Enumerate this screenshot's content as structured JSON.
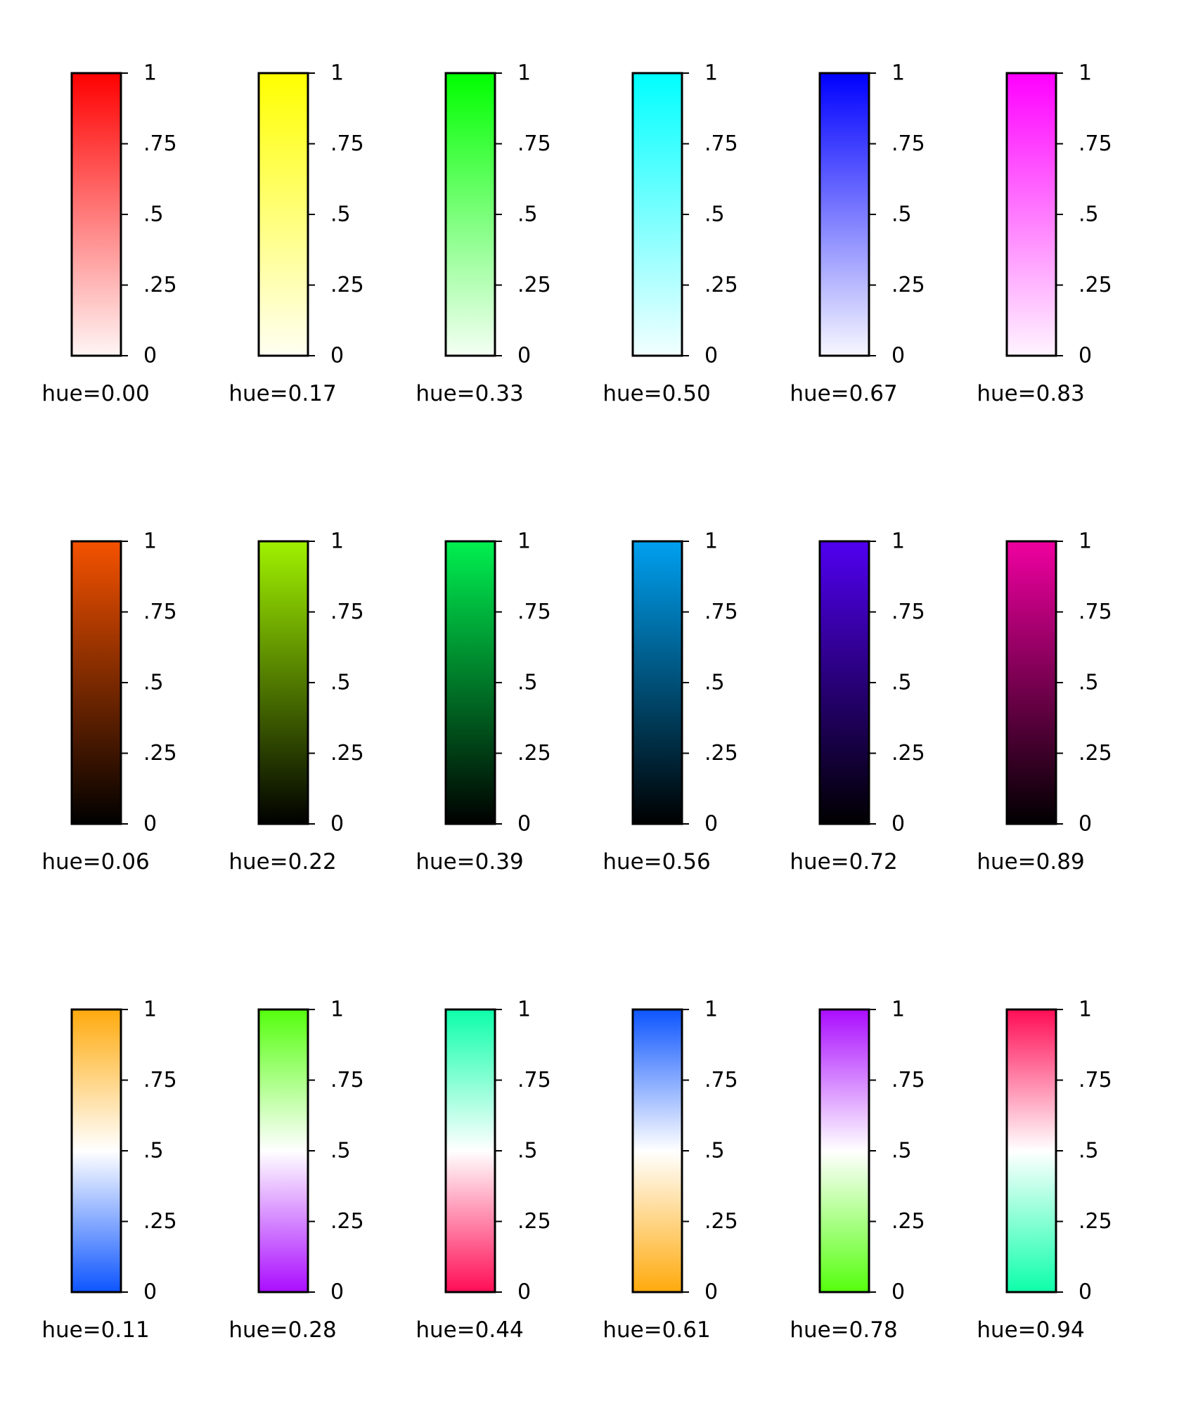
{
  "chart_data": {
    "type": "heatmap",
    "description_kind": "grid of vertical colorbars",
    "tick_values": [
      0,
      0.25,
      0.5,
      0.75,
      1
    ],
    "tick_labels": [
      "0",
      ".25",
      ".5",
      ".75",
      "1"
    ],
    "range": [
      0,
      1
    ],
    "rows": [
      {
        "style": "white-to-color",
        "bars": [
          {
            "label": "hue=0.00",
            "hue": 0.0,
            "bottom_color": "#fff5f5",
            "top_color": "#ff0000"
          },
          {
            "label": "hue=0.17",
            "hue": 0.17,
            "bottom_color": "#fffff2",
            "top_color": "#ffff00"
          },
          {
            "label": "hue=0.33",
            "hue": 0.33,
            "bottom_color": "#f4fff4",
            "top_color": "#00ff00"
          },
          {
            "label": "hue=0.50",
            "hue": 0.5,
            "bottom_color": "#f2ffff",
            "top_color": "#00ffff"
          },
          {
            "label": "hue=0.67",
            "hue": 0.67,
            "bottom_color": "#f7f7ff",
            "top_color": "#0000ff"
          },
          {
            "label": "hue=0.83",
            "hue": 0.83,
            "bottom_color": "#fff4ff",
            "top_color": "#ff00ff"
          }
        ]
      },
      {
        "style": "black-to-color",
        "bars": [
          {
            "label": "hue=0.06",
            "hue": 0.06,
            "bottom_color": "#000000",
            "top_color": "#f55200"
          },
          {
            "label": "hue=0.22",
            "hue": 0.22,
            "bottom_color": "#000000",
            "top_color": "#a0f200"
          },
          {
            "label": "hue=0.39",
            "hue": 0.39,
            "bottom_color": "#000000",
            "top_color": "#00f050"
          },
          {
            "label": "hue=0.56",
            "hue": 0.56,
            "bottom_color": "#000000",
            "top_color": "#00a0f0"
          },
          {
            "label": "hue=0.72",
            "hue": 0.72,
            "bottom_color": "#000000",
            "top_color": "#5000f0"
          },
          {
            "label": "hue=0.89",
            "hue": 0.89,
            "bottom_color": "#000000",
            "top_color": "#f000a0"
          }
        ]
      },
      {
        "style": "diverging",
        "bars": [
          {
            "label": "hue=0.11",
            "hue": 0.11,
            "bottom_color": "#0d55ff",
            "mid_color": "#ffffff",
            "top_color": "#ffaa0d"
          },
          {
            "label": "hue=0.28",
            "hue": 0.28,
            "bottom_color": "#aa0dff",
            "mid_color": "#ffffff",
            "top_color": "#55ff0d"
          },
          {
            "label": "hue=0.44",
            "hue": 0.44,
            "bottom_color": "#ff0d55",
            "mid_color": "#ffffff",
            "top_color": "#0dffaa"
          },
          {
            "label": "hue=0.61",
            "hue": 0.61,
            "bottom_color": "#ffaa0d",
            "mid_color": "#ffffff",
            "top_color": "#0d55ff"
          },
          {
            "label": "hue=0.78",
            "hue": 0.78,
            "bottom_color": "#55ff0d",
            "mid_color": "#ffffff",
            "top_color": "#aa0dff"
          },
          {
            "label": "hue=0.94",
            "hue": 0.94,
            "bottom_color": "#0dffaa",
            "mid_color": "#ffffff",
            "top_color": "#ff0d55"
          }
        ]
      }
    ]
  }
}
